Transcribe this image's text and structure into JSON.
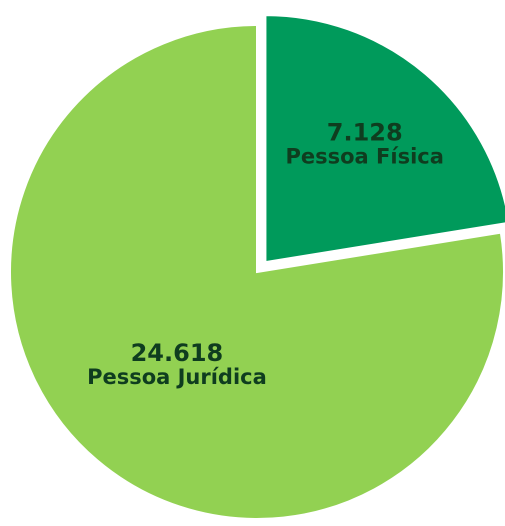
{
  "chart_data": {
    "type": "pie",
    "categories": [
      "Pessoa Física",
      "Pessoa Jurídica"
    ],
    "values": [
      7128,
      24618
    ],
    "value_labels": [
      "7.128",
      "24.618"
    ],
    "colors": [
      "#009a5b",
      "#92d152"
    ]
  }
}
